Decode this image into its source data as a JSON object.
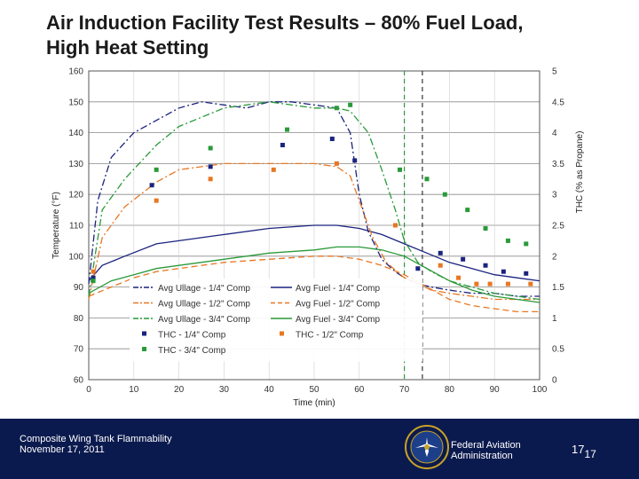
{
  "slide": {
    "title_line1": "Air Induction Facility Test Results – 80% Fuel Load,",
    "title_line2": "High Heat Setting"
  },
  "footer": {
    "left_line1": "Composite Wing Tank Flammability",
    "left_line2": "November 17, 2011",
    "agency_line1": "Federal Aviation",
    "agency_line2": "Administration",
    "page_main": "17",
    "page_sub": "17",
    "colors": {
      "background": "#0b1a4e",
      "text": "#ffffff"
    }
  },
  "chart_data": {
    "type": "line",
    "xlabel": "Time (min)",
    "ylabel": "Temperature (°F)",
    "y2label": "THC (% as Propane)",
    "xlim": [
      0,
      100
    ],
    "ylim": [
      60,
      160
    ],
    "y2lim": [
      0,
      5
    ],
    "xticks": [
      "0",
      "10",
      "20",
      "30",
      "40",
      "50",
      "60",
      "70",
      "80",
      "90",
      "100"
    ],
    "yticks": [
      "60",
      "70",
      "80",
      "90",
      "100",
      "110",
      "120",
      "130",
      "140",
      "150",
      "160"
    ],
    "y2ticks": [
      "0",
      "0.5",
      "1",
      "1.5",
      "2",
      "2.5",
      "3",
      "3.5",
      "4",
      "4.5",
      "5"
    ],
    "grid": true,
    "legend_position": "lower-center",
    "vlines": [
      {
        "x": 70,
        "color": "#2a9a3a",
        "style": "dashed"
      },
      {
        "x": 74,
        "color": "#333333",
        "style": "dashed"
      }
    ],
    "series": [
      {
        "name": "Avg Ullage - 1/4\" Comp",
        "axis": "left",
        "color": "#1a237e",
        "style": "dashdot",
        "x": [
          0,
          2,
          5,
          10,
          15,
          20,
          25,
          30,
          35,
          40,
          45,
          50,
          55,
          58,
          60,
          62,
          65,
          68,
          70,
          73,
          76,
          80,
          85,
          90,
          95,
          100
        ],
        "y": [
          91,
          118,
          132,
          140,
          144,
          148,
          150,
          149,
          148,
          150,
          150,
          149,
          148,
          140,
          120,
          108,
          99,
          95,
          93,
          91,
          90,
          89,
          88,
          88,
          87,
          87
        ]
      },
      {
        "name": "Avg Fuel - 1/4\" Comp",
        "axis": "left",
        "color": "#1a237e",
        "style": "solid",
        "x": [
          0,
          3,
          8,
          15,
          20,
          30,
          40,
          50,
          55,
          60,
          65,
          70,
          75,
          80,
          85,
          90,
          95,
          100
        ],
        "y": [
          92,
          97,
          100,
          104,
          105,
          107,
          109,
          110,
          110,
          109,
          107,
          104,
          101,
          98,
          96,
          94,
          93,
          92
        ]
      },
      {
        "name": "Avg Ullage - 1/2\" Comp",
        "axis": "left",
        "color": "#e87722",
        "style": "dashdot",
        "x": [
          0,
          3,
          8,
          15,
          20,
          30,
          40,
          50,
          55,
          58,
          60,
          63,
          66,
          70,
          73,
          76,
          80,
          85,
          90,
          95,
          100
        ],
        "y": [
          86,
          106,
          116,
          124,
          128,
          130,
          130,
          130,
          129,
          126,
          118,
          106,
          98,
          93,
          91,
          89,
          88,
          87,
          86,
          86,
          86
        ]
      },
      {
        "name": "Avg Fuel - 1/2\" Comp",
        "axis": "left",
        "color": "#e87722",
        "style": "dashed",
        "x": [
          0,
          5,
          10,
          15,
          20,
          30,
          40,
          50,
          55,
          60,
          65,
          70,
          75,
          80,
          85,
          90,
          95,
          100
        ],
        "y": [
          87,
          90,
          93,
          95,
          96,
          98,
          99,
          100,
          100,
          99,
          97,
          94,
          90,
          86,
          84,
          83,
          82,
          82
        ]
      },
      {
        "name": "Avg Ullage - 3/4\" Comp",
        "axis": "left",
        "color": "#2a9a3a",
        "style": "dashdot",
        "x": [
          0,
          3,
          8,
          15,
          20,
          30,
          40,
          50,
          55,
          58,
          62,
          65,
          68,
          70,
          73,
          76,
          80,
          85,
          90,
          95,
          100
        ],
        "y": [
          87,
          115,
          125,
          136,
          142,
          148,
          150,
          148,
          148,
          147,
          140,
          128,
          115,
          105,
          98,
          95,
          92,
          90,
          88,
          87,
          86
        ]
      },
      {
        "name": "Avg Fuel - 3/4\" Comp",
        "axis": "left",
        "color": "#2a9a3a",
        "style": "solid",
        "x": [
          0,
          5,
          10,
          15,
          20,
          30,
          40,
          50,
          55,
          60,
          65,
          70,
          75,
          80,
          85,
          90,
          95,
          100
        ],
        "y": [
          88,
          92,
          94,
          96,
          97,
          99,
          101,
          102,
          103,
          103,
          102,
          100,
          96,
          92,
          89,
          87,
          86,
          85
        ]
      },
      {
        "name": "THC - 1/4\" Comp",
        "axis": "right",
        "color": "#1a237e",
        "style": "markers",
        "x": [
          1,
          14,
          27,
          43,
          54,
          59,
          73,
          78,
          83,
          88,
          92,
          97
        ],
        "y": [
          1.65,
          3.15,
          3.45,
          3.8,
          3.9,
          3.55,
          1.8,
          2.05,
          1.95,
          1.85,
          1.75,
          1.72
        ]
      },
      {
        "name": "THC - 1/2\" Comp",
        "axis": "right",
        "color": "#e87722",
        "style": "markers",
        "x": [
          1,
          15,
          27,
          41,
          55,
          68,
          78,
          82,
          86,
          89,
          93,
          98
        ],
        "y": [
          1.75,
          2.9,
          3.25,
          3.4,
          3.5,
          2.5,
          1.85,
          1.65,
          1.55,
          1.55,
          1.55,
          1.55
        ]
      },
      {
        "name": "THC - 3/4\" Comp",
        "axis": "right",
        "color": "#2a9a3a",
        "style": "markers",
        "x": [
          1,
          15,
          27,
          44,
          55,
          58,
          69,
          75,
          79,
          84,
          88,
          93,
          97
        ],
        "y": [
          1.6,
          3.4,
          3.75,
          4.05,
          4.4,
          4.45,
          3.4,
          3.25,
          3.0,
          2.75,
          2.45,
          2.25,
          2.2
        ]
      }
    ]
  }
}
